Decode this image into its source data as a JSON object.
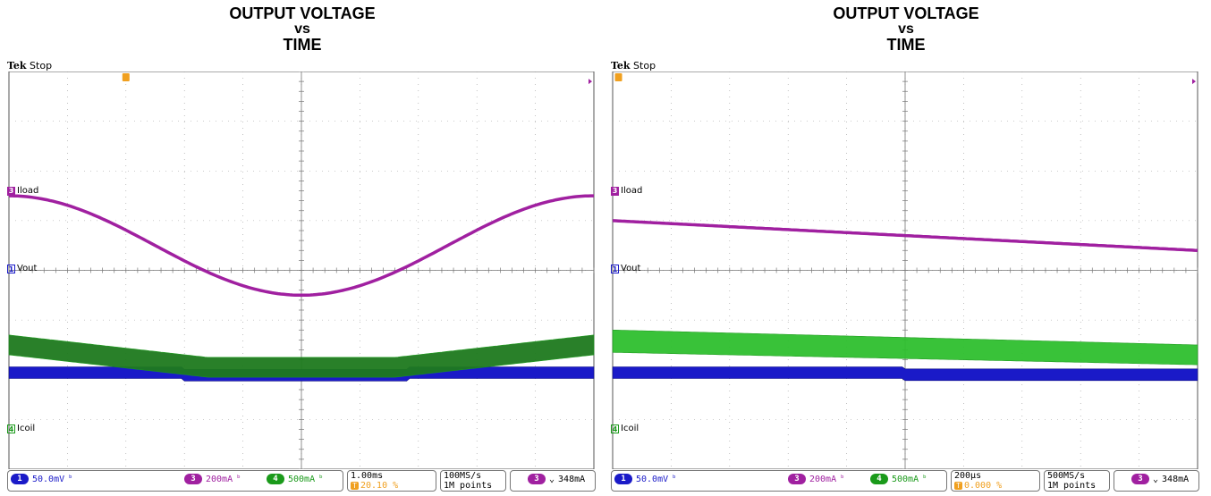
{
  "colors": {
    "ch1": "#1a1ac8",
    "ch3": "#a020a0",
    "ch4": "#1a9a1a",
    "trigger": "#f0a020",
    "grid": "#9a9a9a"
  },
  "scopes": [
    {
      "title_line1": "OUTPUT VOLTAGE",
      "title_line2": "vs",
      "title_line3": "TIME",
      "brand": "Tek",
      "run_state": "Stop",
      "labels": {
        "iload": "Iload",
        "vout": "Vout",
        "icoil": "Icoil",
        "ch3": "3",
        "ch1": "1",
        "ch4": "4"
      },
      "status": {
        "ch1_scale": "50.0mV",
        "ch3_scale": "200mA",
        "ch4_scale": "500mA",
        "timebase": "1.00ms",
        "trigger_pos": "20.10 %",
        "sample_rate": "100MS/s",
        "record_length": "1M points",
        "trigger_level": "348mA",
        "ch1_badge": "1",
        "ch3_badge": "3",
        "ch4_badge": "4",
        "trig_badge": "3",
        "bw": "ᵇ",
        "slope": "⌄"
      }
    },
    {
      "title_line1": "OUTPUT VOLTAGE",
      "title_line2": "vs",
      "title_line3": "TIME",
      "brand": "Tek",
      "run_state": "Stop",
      "labels": {
        "iload": "Iload",
        "vout": "Vout",
        "icoil": "Icoil",
        "ch3": "3",
        "ch1": "1",
        "ch4": "4"
      },
      "status": {
        "ch1_scale": "50.0mV",
        "ch3_scale": "200mA",
        "ch4_scale": "500mA",
        "timebase": "200µs",
        "trigger_pos": "0.000 %",
        "sample_rate": "500MS/s",
        "record_length": "1M points",
        "trigger_level": "348mA",
        "ch1_badge": "1",
        "ch3_badge": "3",
        "ch4_badge": "4",
        "trig_badge": "3",
        "bw": "ᵇ",
        "slope": "⌄"
      }
    }
  ],
  "chart_data": [
    {
      "type": "line",
      "title": "OUTPUT VOLTAGE vs TIME",
      "grid": true,
      "divisions": {
        "x": 10,
        "y": 8
      },
      "series": [
        {
          "name": "Iload",
          "shape": "sine",
          "x_div": [
            0,
            2.5,
            5,
            7.5,
            10
          ],
          "y_div": [
            5.5,
            4.5,
            3.5,
            4.5,
            5.5
          ]
        },
        {
          "name": "Vout",
          "shape": "flat-with-dips",
          "level_div": 1.95,
          "dip_start_div": 3.0,
          "dip_end_div": 6.8,
          "dip_depth_div": 0.05
        },
        {
          "name": "Icoil",
          "shape": "band",
          "x_div": [
            0,
            3.4,
            6.6,
            10
          ],
          "top_div": [
            -1.3,
            -1.75,
            -1.75,
            -1.3
          ],
          "bottom_div": [
            -1.7,
            -2.15,
            -2.15,
            -1.7
          ]
        }
      ]
    },
    {
      "type": "line",
      "title": "OUTPUT VOLTAGE vs TIME",
      "grid": true,
      "divisions": {
        "x": 10,
        "y": 8
      },
      "series": [
        {
          "name": "Iload",
          "shape": "ramp",
          "x_div": [
            0,
            10
          ],
          "y_div": [
            5.0,
            4.4
          ]
        },
        {
          "name": "Vout",
          "shape": "flat-with-dips",
          "level_div": 1.95,
          "dip_start_div": 5.0,
          "dip_end_div": 10,
          "dip_depth_div": 0.04
        },
        {
          "name": "Icoil",
          "shape": "band",
          "x_div": [
            0,
            10
          ],
          "top_div": [
            -1.2,
            -1.5
          ],
          "bottom_div": [
            -1.65,
            -1.9
          ]
        }
      ]
    }
  ]
}
